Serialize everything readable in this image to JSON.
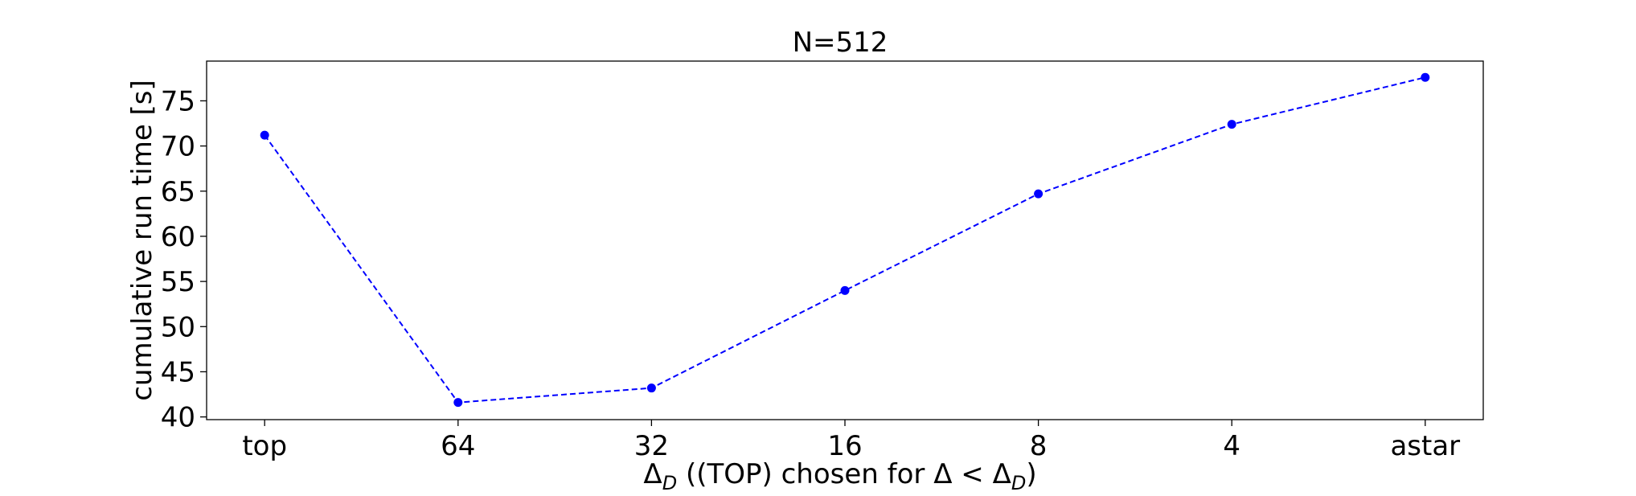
{
  "chart_data": {
    "type": "line",
    "title": "N=512",
    "xlabel_parts": {
      "delta": "Δ",
      "sub": "D",
      "middle": " ((TOP) chosen for Δ < Δ",
      "sub2": "D",
      "end": ")"
    },
    "ylabel": "cumulative run time [s]",
    "categories": [
      "top",
      "64",
      "32",
      "16",
      "8",
      "4",
      "astar"
    ],
    "series": [
      {
        "values": [
          71.2,
          41.6,
          43.2,
          54.0,
          64.7,
          72.4,
          77.6
        ],
        "color": "#0000ff",
        "line_style": "dashed",
        "marker": "circle"
      }
    ],
    "ylim": [
      39.7,
      79.4
    ],
    "yticks": [
      40,
      45,
      50,
      55,
      60,
      65,
      70,
      75
    ],
    "grid": false,
    "legend": "none"
  }
}
